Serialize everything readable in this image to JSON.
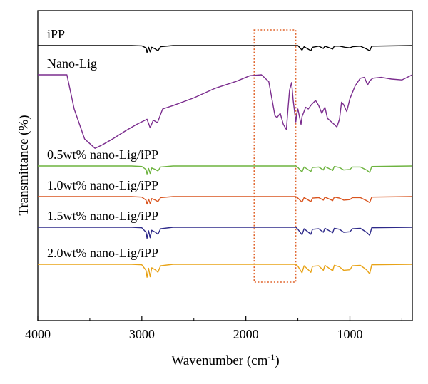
{
  "chart_data": {
    "type": "line",
    "title": "",
    "xlabel": "Wavenumber (cm-1)",
    "xlabel_main": "Wavenumber (cm",
    "xlabel_sup": "-1",
    "xlabel_end": ")",
    "ylabel": "Transmittance (%)",
    "xlim": [
      4000,
      400
    ],
    "x_reversed": true,
    "xticks": [
      4000,
      3000,
      2000,
      1000
    ],
    "y_ticks_shown": false,
    "grid": false,
    "legend": "labels above each trace",
    "highlight_box": {
      "x_range": [
        1920,
        1520
      ],
      "style": "dotted",
      "color": "#e0632a"
    },
    "series": [
      {
        "name": "iPP",
        "color": "#000000",
        "points": [
          [
            4000,
            0
          ],
          [
            3100,
            0
          ],
          [
            3000,
            0.05
          ],
          [
            2960,
            0.4
          ],
          [
            2950,
            1.2
          ],
          [
            2935,
            0.3
          ],
          [
            2920,
            1.1
          ],
          [
            2905,
            0.3
          ],
          [
            2870,
            0.6
          ],
          [
            2845,
            0.9
          ],
          [
            2820,
            0.2
          ],
          [
            2700,
            0
          ],
          [
            1500,
            0
          ],
          [
            1460,
            0.8
          ],
          [
            1440,
            0.2
          ],
          [
            1375,
            0.9
          ],
          [
            1360,
            0.3
          ],
          [
            1300,
            0.1
          ],
          [
            1255,
            0.5
          ],
          [
            1240,
            0.1
          ],
          [
            1165,
            0.6
          ],
          [
            1150,
            0.1
          ],
          [
            1100,
            0.1
          ],
          [
            1045,
            0.3
          ],
          [
            1000,
            0.4
          ],
          [
            975,
            0.2
          ],
          [
            900,
            0.1
          ],
          [
            840,
            0.6
          ],
          [
            810,
            0.9
          ],
          [
            790,
            0.1
          ],
          [
            400,
            0
          ]
        ]
      },
      {
        "name": "Nano-Lig",
        "color": "#7b2d8e",
        "points": [
          [
            4000,
            0
          ],
          [
            3720,
            0
          ],
          [
            3650,
            4
          ],
          [
            3550,
            7.5
          ],
          [
            3450,
            8.6
          ],
          [
            3380,
            8.2
          ],
          [
            3280,
            7.5
          ],
          [
            3150,
            6.5
          ],
          [
            3050,
            5.8
          ],
          [
            2950,
            5.2
          ],
          [
            2920,
            6.2
          ],
          [
            2890,
            5.3
          ],
          [
            2850,
            5.6
          ],
          [
            2800,
            4.0
          ],
          [
            2700,
            3.6
          ],
          [
            2500,
            2.7
          ],
          [
            2300,
            1.6
          ],
          [
            2100,
            0.8
          ],
          [
            1960,
            0.1
          ],
          [
            1850,
            0
          ],
          [
            1780,
            0.8
          ],
          [
            1720,
            4.8
          ],
          [
            1700,
            5.0
          ],
          [
            1670,
            4.5
          ],
          [
            1640,
            5.8
          ],
          [
            1610,
            6.4
          ],
          [
            1595,
            4.0
          ],
          [
            1580,
            1.8
          ],
          [
            1560,
            0.9
          ],
          [
            1545,
            3.0
          ],
          [
            1520,
            5.5
          ],
          [
            1510,
            4.5
          ],
          [
            1500,
            4.0
          ],
          [
            1470,
            5.8
          ],
          [
            1460,
            4.9
          ],
          [
            1425,
            3.8
          ],
          [
            1400,
            4.0
          ],
          [
            1370,
            3.5
          ],
          [
            1330,
            3.0
          ],
          [
            1300,
            3.6
          ],
          [
            1270,
            4.5
          ],
          [
            1240,
            3.8
          ],
          [
            1215,
            5.1
          ],
          [
            1160,
            5.7
          ],
          [
            1125,
            6.1
          ],
          [
            1100,
            5.2
          ],
          [
            1080,
            3.2
          ],
          [
            1060,
            3.5
          ],
          [
            1030,
            4.3
          ],
          [
            1000,
            2.8
          ],
          [
            950,
            1.3
          ],
          [
            900,
            0.4
          ],
          [
            860,
            0.3
          ],
          [
            830,
            1.2
          ],
          [
            810,
            0.7
          ],
          [
            780,
            0.4
          ],
          [
            700,
            0.3
          ],
          [
            600,
            0.5
          ],
          [
            500,
            0.6
          ],
          [
            400,
            0
          ]
        ]
      },
      {
        "name": "0.5wt% nano-Lig/iPP",
        "color": "#6db33f",
        "points": [
          [
            4000,
            0
          ],
          [
            3100,
            0
          ],
          [
            3000,
            0.1
          ],
          [
            2960,
            0.7
          ],
          [
            2950,
            1.6
          ],
          [
            2935,
            0.5
          ],
          [
            2920,
            1.5
          ],
          [
            2905,
            0.4
          ],
          [
            2870,
            0.7
          ],
          [
            2845,
            1.0
          ],
          [
            2820,
            0.2
          ],
          [
            2700,
            0
          ],
          [
            1520,
            0
          ],
          [
            1500,
            0.3
          ],
          [
            1460,
            1.2
          ],
          [
            1440,
            0.2
          ],
          [
            1375,
            1.1
          ],
          [
            1360,
            0.3
          ],
          [
            1300,
            0.2
          ],
          [
            1255,
            0.8
          ],
          [
            1240,
            0.1
          ],
          [
            1165,
            0.9
          ],
          [
            1150,
            0.1
          ],
          [
            1100,
            0.3
          ],
          [
            1060,
            0.8
          ],
          [
            1000,
            0.7
          ],
          [
            975,
            0.2
          ],
          [
            900,
            0.2
          ],
          [
            840,
            0.8
          ],
          [
            810,
            1.3
          ],
          [
            790,
            0.1
          ],
          [
            400,
            0
          ]
        ]
      },
      {
        "name": "1.0wt% nano-Lig/iPP",
        "color": "#d9541e",
        "points": [
          [
            4000,
            0
          ],
          [
            3100,
            0
          ],
          [
            3000,
            0.1
          ],
          [
            2960,
            0.7
          ],
          [
            2950,
            1.5
          ],
          [
            2935,
            0.5
          ],
          [
            2920,
            1.4
          ],
          [
            2905,
            0.4
          ],
          [
            2870,
            0.7
          ],
          [
            2845,
            1.0
          ],
          [
            2820,
            0.2
          ],
          [
            2700,
            0
          ],
          [
            1520,
            0
          ],
          [
            1500,
            0.3
          ],
          [
            1460,
            1.1
          ],
          [
            1440,
            0.2
          ],
          [
            1375,
            1.0
          ],
          [
            1360,
            0.3
          ],
          [
            1300,
            0.2
          ],
          [
            1255,
            0.7
          ],
          [
            1240,
            0.1
          ],
          [
            1165,
            0.8
          ],
          [
            1150,
            0.1
          ],
          [
            1100,
            0.3
          ],
          [
            1060,
            0.7
          ],
          [
            1000,
            0.6
          ],
          [
            975,
            0.2
          ],
          [
            900,
            0.2
          ],
          [
            840,
            0.8
          ],
          [
            810,
            1.2
          ],
          [
            790,
            0.1
          ],
          [
            400,
            0
          ]
        ]
      },
      {
        "name": "1.5wt% nano-Lig/iPP",
        "color": "#2e2a8a",
        "points": [
          [
            4000,
            0
          ],
          [
            3100,
            0
          ],
          [
            3000,
            0.1
          ],
          [
            2960,
            1.0
          ],
          [
            2950,
            2.2
          ],
          [
            2935,
            0.7
          ],
          [
            2920,
            2.1
          ],
          [
            2905,
            0.6
          ],
          [
            2870,
            1.0
          ],
          [
            2845,
            1.4
          ],
          [
            2820,
            0.3
          ],
          [
            2700,
            0
          ],
          [
            1520,
            0
          ],
          [
            1500,
            0.4
          ],
          [
            1460,
            1.5
          ],
          [
            1440,
            0.3
          ],
          [
            1375,
            1.4
          ],
          [
            1360,
            0.4
          ],
          [
            1300,
            0.3
          ],
          [
            1255,
            1.0
          ],
          [
            1240,
            0.2
          ],
          [
            1165,
            1.1
          ],
          [
            1150,
            0.2
          ],
          [
            1100,
            0.4
          ],
          [
            1060,
            1.0
          ],
          [
            1000,
            0.9
          ],
          [
            975,
            0.3
          ],
          [
            900,
            0.2
          ],
          [
            840,
            1.0
          ],
          [
            810,
            1.6
          ],
          [
            790,
            0.1
          ],
          [
            400,
            0
          ]
        ]
      },
      {
        "name": "2.0wt% nano-Lig/iPP",
        "color": "#e8a317",
        "points": [
          [
            4000,
            0
          ],
          [
            3100,
            0
          ],
          [
            3000,
            0.1
          ],
          [
            2960,
            1.2
          ],
          [
            2950,
            2.6
          ],
          [
            2935,
            0.8
          ],
          [
            2920,
            2.5
          ],
          [
            2905,
            0.7
          ],
          [
            2870,
            1.1
          ],
          [
            2845,
            1.6
          ],
          [
            2820,
            0.3
          ],
          [
            2700,
            0
          ],
          [
            1520,
            0
          ],
          [
            1500,
            0.4
          ],
          [
            1460,
            1.7
          ],
          [
            1440,
            0.3
          ],
          [
            1375,
            1.6
          ],
          [
            1360,
            0.4
          ],
          [
            1300,
            0.3
          ],
          [
            1255,
            1.2
          ],
          [
            1240,
            0.2
          ],
          [
            1165,
            1.3
          ],
          [
            1150,
            0.2
          ],
          [
            1100,
            0.5
          ],
          [
            1060,
            1.2
          ],
          [
            1000,
            1.1
          ],
          [
            975,
            0.3
          ],
          [
            900,
            0.2
          ],
          [
            840,
            1.1
          ],
          [
            810,
            1.9
          ],
          [
            790,
            0.1
          ],
          [
            400,
            0
          ]
        ]
      }
    ]
  }
}
